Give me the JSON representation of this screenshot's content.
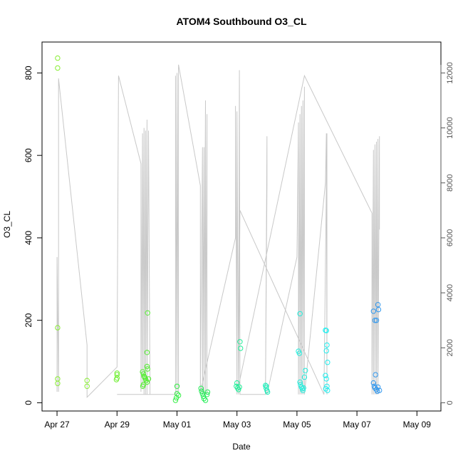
{
  "chart_data": {
    "type": "scatter",
    "title": "ATOM4 Southbound O3_CL",
    "xlabel": "Date",
    "ylabel": "O3_CL",
    "x_ticks": [
      "Apr 27",
      "Apr 29",
      "May 01",
      "May 03",
      "May 05",
      "May 07",
      "May 09"
    ],
    "y_ticks": [
      "0",
      "200",
      "400",
      "600",
      "800"
    ],
    "y2_ticks": [
      "0",
      "2000",
      "4000",
      "6000",
      "8000",
      "10000",
      "12000"
    ],
    "xlim": [
      -0.5,
      12.8
    ],
    "ylim": [
      -20,
      875
    ],
    "y2lim": [
      -300,
      13125
    ],
    "grid": false,
    "series": [
      {
        "role": "points",
        "points": [
          [
            0.02,
            836,
            "#88ee33"
          ],
          [
            0.02,
            812,
            "#88ee33"
          ],
          [
            0.02,
            182,
            "#88ee33"
          ],
          [
            0.02,
            58,
            "#88ee33"
          ],
          [
            0.02,
            47,
            "#88ee33"
          ],
          [
            1.0,
            54,
            "#88ee33"
          ],
          [
            1.0,
            40,
            "#88ee33"
          ],
          [
            2.0,
            72,
            "#70ee33"
          ],
          [
            2.0,
            68,
            "#70ee33"
          ],
          [
            2.0,
            60,
            "#70ee33"
          ],
          [
            1.98,
            56,
            "#70ee33"
          ],
          [
            2.85,
            75,
            "#55ee33"
          ],
          [
            2.88,
            70,
            "#55ee33"
          ],
          [
            2.9,
            64,
            "#55ee33"
          ],
          [
            2.92,
            62,
            "#55ee33"
          ],
          [
            2.95,
            58,
            "#55ee33"
          ],
          [
            2.97,
            54,
            "#55ee33"
          ],
          [
            2.88,
            44,
            "#55ee33"
          ],
          [
            2.86,
            40,
            "#55ee33"
          ],
          [
            3.0,
            50,
            "#55ee33"
          ],
          [
            3.02,
            82,
            "#55ee33"
          ],
          [
            3.0,
            88,
            "#55ee33"
          ],
          [
            3.02,
            218,
            "#55ee33"
          ],
          [
            3.0,
            122,
            "#55ee33"
          ],
          [
            3.05,
            58,
            "#55ee33"
          ],
          [
            4.0,
            40,
            "#33ee44"
          ],
          [
            4.0,
            22,
            "#33ee44"
          ],
          [
            4.05,
            18,
            "#33ee44"
          ],
          [
            3.98,
            12,
            "#33ee44"
          ],
          [
            3.95,
            6,
            "#33ee44"
          ],
          [
            4.8,
            35,
            "#22ee55"
          ],
          [
            4.82,
            28,
            "#22ee55"
          ],
          [
            4.85,
            22,
            "#22ee55"
          ],
          [
            4.88,
            16,
            "#22ee55"
          ],
          [
            4.9,
            10,
            "#22ee55"
          ],
          [
            4.95,
            6,
            "#22ee55"
          ],
          [
            5.0,
            20,
            "#22ee55"
          ],
          [
            5.02,
            26,
            "#22ee55"
          ],
          [
            6.0,
            48,
            "#22ee99"
          ],
          [
            5.98,
            40,
            "#22ee99"
          ],
          [
            6.02,
            36,
            "#22ee99"
          ],
          [
            6.05,
            32,
            "#22ee99"
          ],
          [
            6.08,
            38,
            "#22ee99"
          ],
          [
            6.1,
            148,
            "#22ee99"
          ],
          [
            6.12,
            132,
            "#22ee99"
          ],
          [
            6.95,
            42,
            "#22eebb"
          ],
          [
            6.97,
            36,
            "#22eebb"
          ],
          [
            7.0,
            30,
            "#22eebb"
          ],
          [
            7.02,
            26,
            "#22eebb"
          ],
          [
            6.98,
            40,
            "#22eebb"
          ],
          [
            8.05,
            125,
            "#22eedd"
          ],
          [
            8.08,
            120,
            "#22eedd"
          ],
          [
            8.1,
            50,
            "#22eedd"
          ],
          [
            8.12,
            44,
            "#22eedd"
          ],
          [
            8.15,
            38,
            "#22eedd"
          ],
          [
            8.18,
            34,
            "#22eedd"
          ],
          [
            8.2,
            30,
            "#22eedd"
          ],
          [
            8.22,
            36,
            "#22eedd"
          ],
          [
            8.25,
            62,
            "#22eedd"
          ],
          [
            8.28,
            78,
            "#22eedd"
          ],
          [
            8.1,
            216,
            "#22eedd"
          ],
          [
            8.95,
            176,
            "#22eeee"
          ],
          [
            8.98,
            175,
            "#22eeee"
          ],
          [
            9.0,
            140,
            "#22eeee"
          ],
          [
            8.98,
            126,
            "#22eeee"
          ],
          [
            9.02,
            98,
            "#22eeee"
          ],
          [
            8.95,
            66,
            "#22eeee"
          ],
          [
            8.98,
            58,
            "#22eeee"
          ],
          [
            9.0,
            40,
            "#22eeee"
          ],
          [
            8.96,
            34,
            "#22eeee"
          ],
          [
            9.02,
            30,
            "#22eeee"
          ],
          [
            10.55,
            222,
            "#3399ee"
          ],
          [
            10.6,
            200,
            "#3399ee"
          ],
          [
            10.65,
            200,
            "#3399ee"
          ],
          [
            10.7,
            238,
            "#3399ee"
          ],
          [
            10.72,
            226,
            "#3399ee"
          ],
          [
            10.62,
            68,
            "#3399ee"
          ],
          [
            10.55,
            48,
            "#3399ee"
          ],
          [
            10.58,
            40,
            "#3399ee"
          ],
          [
            10.6,
            36,
            "#3399ee"
          ],
          [
            10.65,
            32,
            "#3399ee"
          ],
          [
            10.7,
            38,
            "#3399ee"
          ],
          [
            10.75,
            30,
            "#3399ee"
          ],
          [
            10.68,
            28,
            "#3399ee"
          ]
        ]
      },
      {
        "role": "trace-right-axis",
        "points": [
          [
            0.0,
            400
          ],
          [
            0.0,
            5300
          ],
          [
            0.05,
            400
          ],
          [
            0.05,
            11800
          ],
          [
            1.0,
            2100
          ],
          [
            1.0,
            200
          ],
          [
            2.0,
            1300
          ],
          [
            2.05,
            11900
          ],
          [
            2.8,
            8700
          ],
          [
            2.8,
            400
          ],
          [
            2.85,
            9800
          ],
          [
            2.85,
            500
          ],
          [
            2.9,
            10000
          ],
          [
            2.9,
            300
          ],
          [
            2.95,
            9900
          ],
          [
            2.95,
            300
          ],
          [
            3.0,
            10300
          ],
          [
            3.0,
            300
          ],
          [
            3.05,
            9900
          ],
          [
            3.1,
            300
          ],
          [
            2.8,
            300
          ],
          [
            2.0,
            300
          ],
          [
            3.95,
            300
          ],
          [
            3.95,
            11900
          ],
          [
            4.0,
            300
          ],
          [
            4.0,
            12000
          ],
          [
            4.05,
            400
          ],
          [
            4.05,
            12300
          ],
          [
            4.78,
            7900
          ],
          [
            4.78,
            300
          ],
          [
            4.85,
            9300
          ],
          [
            4.85,
            300
          ],
          [
            4.9,
            9300
          ],
          [
            4.9,
            300
          ],
          [
            4.95,
            11000
          ],
          [
            4.95,
            300
          ],
          [
            5.0,
            10500
          ],
          [
            5.0,
            300
          ],
          [
            4.8,
            500
          ],
          [
            5.95,
            6000
          ],
          [
            5.95,
            10800
          ],
          [
            6.0,
            300
          ],
          [
            6.0,
            10600
          ],
          [
            6.05,
            300
          ],
          [
            6.08,
            12100
          ],
          [
            6.1,
            300
          ],
          [
            6.95,
            300
          ],
          [
            7.0,
            7900
          ],
          [
            7.0,
            9700
          ],
          [
            6.95,
            500
          ],
          [
            7.0,
            300
          ],
          [
            8.0,
            5300
          ],
          [
            8.05,
            10200
          ],
          [
            8.05,
            300
          ],
          [
            8.1,
            10500
          ],
          [
            8.1,
            300
          ],
          [
            8.15,
            10800
          ],
          [
            8.15,
            300
          ],
          [
            8.2,
            11000
          ],
          [
            8.2,
            300
          ],
          [
            8.25,
            11500
          ],
          [
            8.25,
            300
          ],
          [
            8.95,
            8000
          ],
          [
            8.98,
            9800
          ],
          [
            9.0,
            300
          ],
          [
            9.0,
            9800
          ],
          [
            8.9,
            300
          ],
          [
            6.1,
            7000
          ],
          [
            6.05,
            600
          ],
          [
            8.25,
            11900
          ],
          [
            10.5,
            6900
          ],
          [
            10.5,
            300
          ],
          [
            10.55,
            9200
          ],
          [
            10.55,
            300
          ],
          [
            10.6,
            9400
          ],
          [
            10.6,
            300
          ],
          [
            10.65,
            9500
          ],
          [
            10.65,
            300
          ],
          [
            10.7,
            9600
          ],
          [
            10.7,
            300
          ],
          [
            10.75,
            9700
          ],
          [
            10.75,
            6300
          ]
        ]
      }
    ]
  }
}
